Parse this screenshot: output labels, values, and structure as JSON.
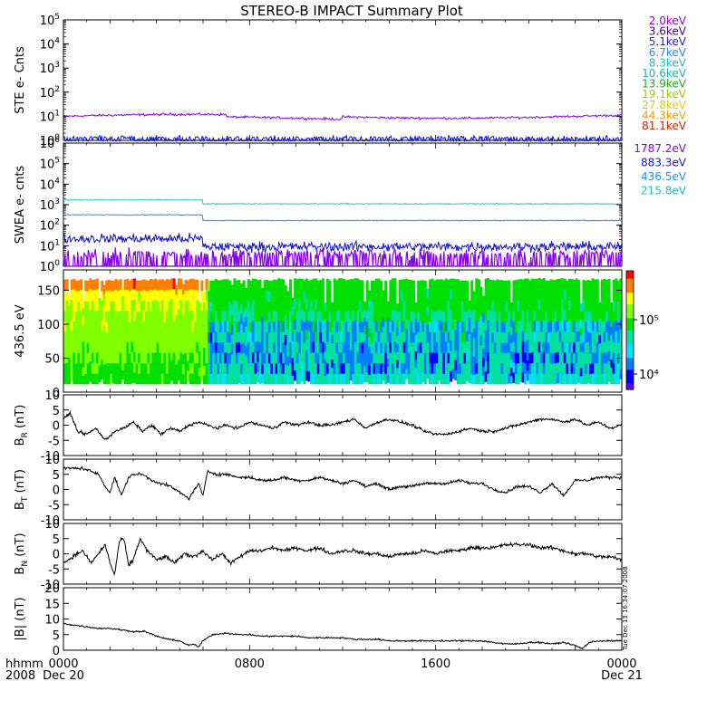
{
  "chart_data": {
    "type": "line",
    "title": "STEREO-B IMPACT Summary Plot",
    "x_tick_labels": [
      "0000",
      "0800",
      "1600",
      "0000"
    ],
    "x_date_labels": [
      "Dec 20",
      "",
      "",
      "Dec 21"
    ],
    "x_corner_labels": [
      "hhmm",
      "2008"
    ],
    "x_range_hours": [
      0,
      24
    ],
    "timestamp": "Tue Dec 13 16:34:07 2008",
    "panels": [
      {
        "id": "ste",
        "ylabel": "STE e- Cnts",
        "yscale": "log",
        "ylim_exp": [
          0,
          5
        ],
        "legend": [
          {
            "label": "2.0keV",
            "color": "#9400d3"
          },
          {
            "label": "3.6keV",
            "color": "#4b0082"
          },
          {
            "label": "5.1keV",
            "color": "#2222dd"
          },
          {
            "label": "6.7keV",
            "color": "#1e90ff"
          },
          {
            "label": "8.3keV",
            "color": "#20c0c0"
          },
          {
            "label": "10.6keV",
            "color": "#20b2aa"
          },
          {
            "label": "13.9keV",
            "color": "#22aa22"
          },
          {
            "label": "19.1keV",
            "color": "#99cc00"
          },
          {
            "label": "27.8keV",
            "color": "#ddcc00"
          },
          {
            "label": "44.3keV",
            "color": "#ff9900"
          },
          {
            "label": "81.1keV",
            "color": "#dd2200"
          }
        ],
        "series": [
          {
            "label": "2.0keV",
            "color": "#8800ee",
            "level": 10,
            "log_noise": 0.07
          },
          {
            "label": "5.1keV",
            "color": "#1010dd",
            "level": 1.3,
            "log_noise": 0.12
          }
        ]
      },
      {
        "id": "swea",
        "ylabel": "SWEA e- cnts",
        "yscale": "log",
        "ylim_exp": [
          0,
          6
        ],
        "legend": [
          {
            "label": "1787.2eV",
            "color": "#8800ee"
          },
          {
            "label": "883.3eV",
            "color": "#1515cc"
          },
          {
            "label": "436.5eV",
            "color": "#1e90ff"
          },
          {
            "label": "215.8eV",
            "color": "#20c0c0"
          }
        ],
        "series": [
          {
            "label": "215.8eV",
            "color": "#20c8c8",
            "level_early": 1700,
            "level_late": 1100
          },
          {
            "label": "436.5eV",
            "color": "#1e90ff",
            "level_early": 320,
            "level_late": 170
          },
          {
            "label": "883.3eV",
            "color": "#1515cc",
            "level_early": 22,
            "level_late": 9
          },
          {
            "label": "1787.2eV",
            "color": "#8800ee",
            "level_early": 4,
            "level_late": 4
          }
        ]
      },
      {
        "id": "pad",
        "ylabel": "436.5 eV",
        "type": "heatmap",
        "ylim": [
          0,
          180
        ],
        "yticks": [
          0,
          50,
          100,
          150
        ],
        "colorbar_labels": [
          "10⁵",
          "10⁴"
        ],
        "colorbar_colors": [
          "#ff0000",
          "#ff8000",
          "#ffff00",
          "#80ff00",
          "#00e000",
          "#00e0a0",
          "#00e0ff",
          "#0080ff",
          "#0000ff",
          "#6000ff"
        ]
      },
      {
        "id": "br",
        "ylabel": "B",
        "ylabel_sub": "R",
        "ylabel_unit": "(nT)",
        "ylim": [
          -10,
          10
        ],
        "yticks": [
          -10,
          -5,
          0,
          5,
          10
        ]
      },
      {
        "id": "bt",
        "ylabel": "B",
        "ylabel_sub": "T",
        "ylabel_unit": "(nT)",
        "ylim": [
          -10,
          10
        ],
        "yticks": [
          -10,
          -5,
          0,
          5,
          10
        ]
      },
      {
        "id": "bn",
        "ylabel": "B",
        "ylabel_sub": "N",
        "ylabel_unit": "(nT)",
        "ylim": [
          -10,
          10
        ],
        "yticks": [
          -10,
          -5,
          0,
          5,
          10
        ]
      },
      {
        "id": "bmag",
        "ylabel": "|B|",
        "ylabel_unit": "(nT)",
        "ylim": [
          0,
          20
        ],
        "yticks": [
          0,
          5,
          10,
          15,
          20
        ]
      }
    ],
    "field_anchors": {
      "br": [
        [
          0,
          2
        ],
        [
          0.3,
          4
        ],
        [
          0.6,
          -2
        ],
        [
          1.0,
          -3
        ],
        [
          1.4,
          -1
        ],
        [
          1.8,
          -5
        ],
        [
          2.2,
          -2
        ],
        [
          2.6,
          -1
        ],
        [
          3.0,
          1
        ],
        [
          3.4,
          -2
        ],
        [
          3.8,
          0
        ],
        [
          4.2,
          -3
        ],
        [
          4.6,
          -1
        ],
        [
          5.0,
          -2
        ],
        [
          5.4,
          0
        ],
        [
          5.8,
          1
        ],
        [
          6.2,
          0
        ],
        [
          6.6,
          -1
        ],
        [
          7.0,
          0
        ],
        [
          7.5,
          -1
        ],
        [
          8.0,
          1
        ],
        [
          8.5,
          0
        ],
        [
          9.0,
          -1
        ],
        [
          9.5,
          1
        ],
        [
          10.0,
          0
        ],
        [
          10.5,
          1
        ],
        [
          11.0,
          0
        ],
        [
          11.5,
          0
        ],
        [
          12.0,
          1
        ],
        [
          12.5,
          2
        ],
        [
          13.0,
          -1
        ],
        [
          13.5,
          1
        ],
        [
          14.0,
          2
        ],
        [
          14.5,
          1
        ],
        [
          15.0,
          0
        ],
        [
          15.5,
          -2
        ],
        [
          16.0,
          -3
        ],
        [
          16.5,
          -3
        ],
        [
          17.0,
          -2
        ],
        [
          17.5,
          -1
        ],
        [
          18.0,
          -2
        ],
        [
          18.5,
          -2
        ],
        [
          19.0,
          -1
        ],
        [
          19.5,
          0
        ],
        [
          20.0,
          1
        ],
        [
          20.5,
          2
        ],
        [
          21.0,
          2
        ],
        [
          21.5,
          1
        ],
        [
          22.0,
          2
        ],
        [
          22.5,
          0
        ],
        [
          23.0,
          1
        ],
        [
          23.5,
          -1
        ],
        [
          24.0,
          0
        ]
      ],
      "bt": [
        [
          0,
          7
        ],
        [
          0.4,
          7
        ],
        [
          0.8,
          7
        ],
        [
          1.2,
          6
        ],
        [
          1.5,
          5
        ],
        [
          1.8,
          1
        ],
        [
          2.0,
          -1
        ],
        [
          2.2,
          4
        ],
        [
          2.5,
          -2
        ],
        [
          2.8,
          4
        ],
        [
          3.0,
          5
        ],
        [
          3.4,
          5
        ],
        [
          3.8,
          3
        ],
        [
          4.2,
          2
        ],
        [
          4.6,
          1
        ],
        [
          5.0,
          -1
        ],
        [
          5.4,
          -3
        ],
        [
          5.8,
          2
        ],
        [
          6.0,
          -2
        ],
        [
          6.2,
          6
        ],
        [
          6.6,
          5
        ],
        [
          7.0,
          5
        ],
        [
          7.5,
          4
        ],
        [
          8.0,
          4
        ],
        [
          8.5,
          3
        ],
        [
          9.0,
          3
        ],
        [
          9.5,
          4
        ],
        [
          10.0,
          3
        ],
        [
          10.5,
          3
        ],
        [
          11.0,
          4
        ],
        [
          11.5,
          3
        ],
        [
          12.0,
          2
        ],
        [
          12.5,
          3
        ],
        [
          13.0,
          1
        ],
        [
          13.5,
          2
        ],
        [
          14.0,
          0
        ],
        [
          14.5,
          1
        ],
        [
          15.0,
          1
        ],
        [
          15.5,
          2
        ],
        [
          16.0,
          2
        ],
        [
          16.5,
          2
        ],
        [
          17.0,
          3
        ],
        [
          17.5,
          2
        ],
        [
          18.0,
          2
        ],
        [
          18.5,
          0
        ],
        [
          19.0,
          -1
        ],
        [
          19.5,
          1
        ],
        [
          20.0,
          1
        ],
        [
          20.5,
          -1
        ],
        [
          21.0,
          2
        ],
        [
          21.5,
          -2
        ],
        [
          22.0,
          3
        ],
        [
          22.5,
          3
        ],
        [
          23.0,
          4
        ],
        [
          23.5,
          4
        ],
        [
          24.0,
          4
        ]
      ],
      "bn": [
        [
          0,
          -3
        ],
        [
          0.4,
          -1
        ],
        [
          0.8,
          1
        ],
        [
          1.2,
          -3
        ],
        [
          1.5,
          0
        ],
        [
          1.8,
          3
        ],
        [
          2.0,
          -3
        ],
        [
          2.2,
          -7
        ],
        [
          2.4,
          4
        ],
        [
          2.6,
          5
        ],
        [
          2.8,
          -4
        ],
        [
          3.0,
          -2
        ],
        [
          3.3,
          5
        ],
        [
          3.6,
          1
        ],
        [
          4.0,
          -2
        ],
        [
          4.4,
          -1
        ],
        [
          4.8,
          -3
        ],
        [
          5.2,
          0
        ],
        [
          5.6,
          -1
        ],
        [
          6.0,
          1
        ],
        [
          6.4,
          -2
        ],
        [
          6.8,
          0
        ],
        [
          7.2,
          -3
        ],
        [
          7.6,
          -1
        ],
        [
          8.0,
          1
        ],
        [
          8.5,
          1
        ],
        [
          9.0,
          2
        ],
        [
          9.5,
          1
        ],
        [
          10.0,
          2
        ],
        [
          10.5,
          1
        ],
        [
          11.0,
          2
        ],
        [
          11.5,
          0
        ],
        [
          12.0,
          1
        ],
        [
          12.5,
          1
        ],
        [
          13.0,
          0
        ],
        [
          13.5,
          0
        ],
        [
          14.0,
          -1
        ],
        [
          14.5,
          0
        ],
        [
          15.0,
          0
        ],
        [
          15.5,
          1
        ],
        [
          16.0,
          0
        ],
        [
          16.5,
          1
        ],
        [
          17.0,
          1
        ],
        [
          17.5,
          2
        ],
        [
          18.0,
          2
        ],
        [
          18.5,
          2
        ],
        [
          19.0,
          3
        ],
        [
          19.5,
          3
        ],
        [
          20.0,
          3
        ],
        [
          20.5,
          2
        ],
        [
          21.0,
          2
        ],
        [
          21.5,
          1
        ],
        [
          22.0,
          0
        ],
        [
          22.5,
          0
        ],
        [
          23.0,
          -1
        ],
        [
          23.5,
          -1
        ],
        [
          24.0,
          -2
        ]
      ],
      "bmag": [
        [
          0,
          8.5
        ],
        [
          0.5,
          8
        ],
        [
          1.0,
          7.5
        ],
        [
          1.5,
          7
        ],
        [
          2.0,
          7
        ],
        [
          2.5,
          6.5
        ],
        [
          3.0,
          6
        ],
        [
          3.5,
          6
        ],
        [
          4.0,
          4.5
        ],
        [
          4.5,
          3.5
        ],
        [
          5.0,
          3
        ],
        [
          5.4,
          1.5
        ],
        [
          5.6,
          2
        ],
        [
          5.8,
          1
        ],
        [
          6.0,
          3
        ],
        [
          6.4,
          5
        ],
        [
          7.0,
          5.5
        ],
        [
          7.5,
          5
        ],
        [
          8.0,
          5
        ],
        [
          8.5,
          4.5
        ],
        [
          9.0,
          4.5
        ],
        [
          9.5,
          4.5
        ],
        [
          10.0,
          4.5
        ],
        [
          10.5,
          4
        ],
        [
          11.0,
          4
        ],
        [
          11.5,
          4
        ],
        [
          12.0,
          4
        ],
        [
          12.5,
          3.5
        ],
        [
          13.0,
          3.5
        ],
        [
          13.5,
          3.5
        ],
        [
          14.0,
          3
        ],
        [
          14.5,
          3
        ],
        [
          15.0,
          3
        ],
        [
          15.5,
          3
        ],
        [
          16.0,
          3
        ],
        [
          16.5,
          3
        ],
        [
          17.0,
          3
        ],
        [
          17.5,
          3
        ],
        [
          18.0,
          3
        ],
        [
          18.5,
          2.5
        ],
        [
          19.0,
          2
        ],
        [
          19.5,
          2
        ],
        [
          20.0,
          2.5
        ],
        [
          20.5,
          2.5
        ],
        [
          21.0,
          2
        ],
        [
          21.5,
          2.5
        ],
        [
          22.0,
          1.5
        ],
        [
          22.3,
          0.5
        ],
        [
          22.6,
          2.5
        ],
        [
          23.0,
          3
        ],
        [
          23.5,
          3
        ],
        [
          24.0,
          3
        ]
      ]
    }
  }
}
